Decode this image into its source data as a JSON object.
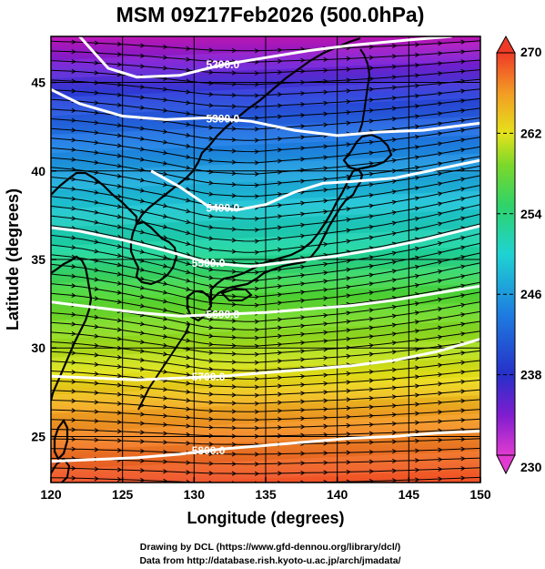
{
  "title": "MSM 09Z17Feb2026 (500.0hPa)",
  "xlabel": "Longitude (degrees)",
  "ylabel": "Latitude  (degrees)",
  "x_ticks": [
    "120",
    "125",
    "130",
    "135",
    "140",
    "145",
    "150"
  ],
  "y_ticks": [
    "25",
    "30",
    "35",
    "40",
    "45"
  ],
  "credits": {
    "line1": "Drawing by DCL (https://www.gfd-dennou.org/library/dcl/)",
    "line2": "Data from http://database.rish.kyoto-u.ac.jp/arch/jmadata/"
  },
  "chart_data": {
    "type": "heatmap",
    "title": "MSM 09Z17Feb2026 (500.0hPa)",
    "xlabel": "Longitude (degrees)",
    "ylabel": "Latitude  (degrees)",
    "xlim": [
      120,
      150
    ],
    "ylim": [
      22.4,
      47.6
    ],
    "grid": true,
    "colorbar": {
      "min": 230,
      "max": 270,
      "ticks": [
        "230",
        "238",
        "246",
        "254",
        "262",
        "270"
      ],
      "colormap": "rainbow"
    },
    "contours": [
      {
        "label": "5200.0",
        "points": [
          [
            122,
            47.6
          ],
          [
            124,
            45.8
          ],
          [
            126,
            45.3
          ],
          [
            129,
            45.4
          ],
          [
            132,
            46.0
          ],
          [
            135,
            46.4
          ],
          [
            138,
            46.8
          ],
          [
            141,
            47.1
          ],
          [
            145,
            47.4
          ],
          [
            148,
            47.6
          ]
        ]
      },
      {
        "label": "5300.0",
        "points": [
          [
            120,
            44.6
          ],
          [
            122,
            43.8
          ],
          [
            125,
            43.1
          ],
          [
            128,
            42.9
          ],
          [
            131,
            43.0
          ],
          [
            134,
            42.8
          ],
          [
            137,
            42.3
          ],
          [
            140,
            42.0
          ],
          [
            143,
            42.2
          ],
          [
            146,
            42.3
          ],
          [
            150,
            42.7
          ]
        ]
      },
      {
        "label": "5400.0",
        "points": [
          [
            127,
            40.0
          ],
          [
            129,
            39.1
          ],
          [
            131,
            38.0
          ],
          [
            133,
            37.8
          ],
          [
            135,
            38.1
          ],
          [
            137,
            38.8
          ],
          [
            139,
            39.3
          ],
          [
            141,
            39.4
          ],
          [
            144,
            39.6
          ],
          [
            147,
            40.1
          ],
          [
            150,
            40.6
          ]
        ]
      },
      {
        "label": "5500.0",
        "points": [
          [
            120,
            36.8
          ],
          [
            122,
            36.6
          ],
          [
            125,
            36.1
          ],
          [
            128,
            35.5
          ],
          [
            131,
            34.8
          ],
          [
            134,
            34.6
          ],
          [
            137,
            34.9
          ],
          [
            140,
            35.2
          ],
          [
            143,
            35.6
          ],
          [
            146,
            36.1
          ],
          [
            150,
            36.9
          ]
        ]
      },
      {
        "label": "5600.0",
        "points": [
          [
            120,
            32.6
          ],
          [
            123,
            32.3
          ],
          [
            126,
            32.0
          ],
          [
            129,
            31.8
          ],
          [
            132,
            31.9
          ],
          [
            135,
            32.0
          ],
          [
            138,
            32.2
          ],
          [
            141,
            32.4
          ],
          [
            144,
            32.7
          ],
          [
            147,
            33.1
          ],
          [
            150,
            33.5
          ]
        ]
      },
      {
        "label": "5700.0",
        "points": [
          [
            120,
            28.4
          ],
          [
            123,
            28.3
          ],
          [
            126,
            28.2
          ],
          [
            129,
            28.3
          ],
          [
            132,
            28.4
          ],
          [
            135,
            28.6
          ],
          [
            138,
            28.8
          ],
          [
            141,
            29.0
          ],
          [
            144,
            29.3
          ],
          [
            147,
            29.8
          ],
          [
            150,
            30.5
          ]
        ]
      },
      {
        "label": "5800.0",
        "points": [
          [
            120,
            23.6
          ],
          [
            123,
            23.7
          ],
          [
            126,
            23.8
          ],
          [
            129,
            24.0
          ],
          [
            132,
            24.3
          ],
          [
            135,
            24.5
          ],
          [
            138,
            24.7
          ],
          [
            141,
            24.9
          ],
          [
            144,
            25.0
          ],
          [
            147,
            25.2
          ],
          [
            150,
            25.3
          ]
        ]
      }
    ],
    "vector_field": "geostrophic wind streamlines, predominantly westerly"
  }
}
